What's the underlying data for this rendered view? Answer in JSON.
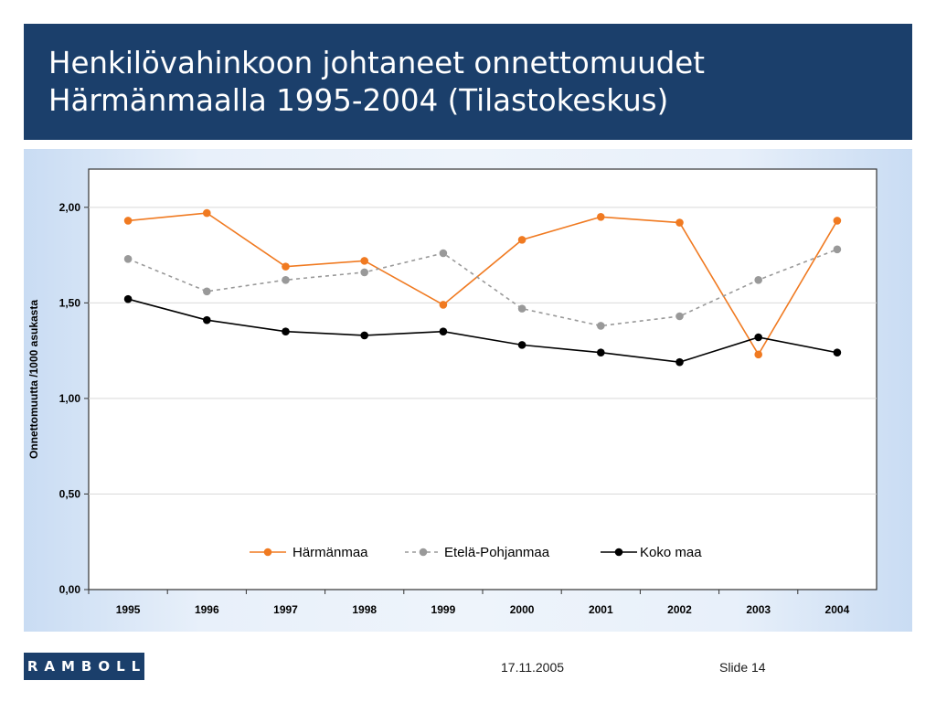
{
  "slide": {
    "title_line1": "Henkilövahinkoon johtaneet onnettomuudet",
    "title_line2": "Härmänmaalla 1995-2004 (Tilastokeskus)"
  },
  "footer": {
    "logo_text": "RAMBOLL",
    "date": "17.11.2005",
    "slide_label": "Slide 14"
  },
  "chart_data": {
    "type": "line",
    "title": "",
    "xlabel": "",
    "ylabel": "Onnettomuutta /1000 asukasta",
    "categories": [
      "1995",
      "1996",
      "1997",
      "1998",
      "1999",
      "2000",
      "2001",
      "2002",
      "2003",
      "2004"
    ],
    "ylim": [
      0,
      2.2
    ],
    "yticks": [
      0,
      0.5,
      1.0,
      1.5,
      2.0
    ],
    "ytick_labels": [
      "0,00",
      "0,50",
      "1,00",
      "1,50",
      "2,00"
    ],
    "grid": "horizontal",
    "legend_position": "bottom-center (inside plot)",
    "series": [
      {
        "name": "Härmänmaa",
        "color": "#f07a21",
        "dash": "solid",
        "values": [
          1.93,
          1.97,
          1.69,
          1.72,
          1.49,
          1.83,
          1.95,
          1.92,
          1.23,
          1.93
        ]
      },
      {
        "name": "Etelä-Pohjanmaa",
        "color": "#999999",
        "dash": "dashed",
        "values": [
          1.73,
          1.56,
          1.62,
          1.66,
          1.76,
          1.47,
          1.38,
          1.43,
          1.62,
          1.78
        ]
      },
      {
        "name": "Koko maa",
        "color": "#000000",
        "dash": "solid",
        "values": [
          1.52,
          1.41,
          1.35,
          1.33,
          1.35,
          1.28,
          1.24,
          1.19,
          1.32,
          1.24
        ]
      }
    ]
  }
}
